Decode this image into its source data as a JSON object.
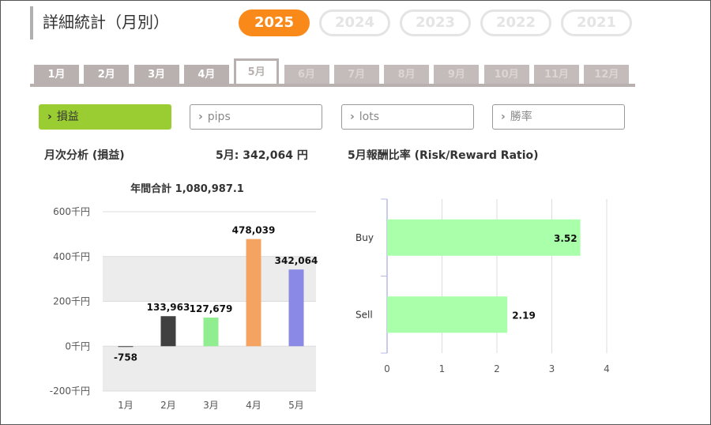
{
  "title": "詳細統計（月別）",
  "years": [
    {
      "label": "2025",
      "active": true
    },
    {
      "label": "2024",
      "active": false
    },
    {
      "label": "2023",
      "active": false
    },
    {
      "label": "2022",
      "active": false
    },
    {
      "label": "2021",
      "active": false
    }
  ],
  "months": [
    "1月",
    "2月",
    "3月",
    "4月",
    "5月",
    "6月",
    "7月",
    "8月",
    "9月",
    "10月",
    "11月",
    "12月"
  ],
  "active_month_index": 4,
  "segments": [
    {
      "label": "損益",
      "active": true
    },
    {
      "label": "pips",
      "active": false
    },
    {
      "label": "lots",
      "active": false
    },
    {
      "label": "勝率",
      "active": false
    }
  ],
  "left_header": "月次分析 (損益)",
  "month_value": "5月:  342,064 円",
  "right_header": "5月報酬比率 (Risk/Reward Ratio)",
  "colors": {
    "accent": "#f98a1a",
    "segment_active": "#9acd32",
    "tab": "#b9b1b0"
  },
  "chart_data": [
    {
      "type": "bar",
      "title": "年間合計 1,080,987.1",
      "categories": [
        "1月",
        "2月",
        "3月",
        "4月",
        "5月"
      ],
      "values": [
        -758,
        133963,
        127679,
        478039,
        342064
      ],
      "value_labels": [
        "-758",
        "133,963",
        "127,679",
        "478,039",
        "342,064"
      ],
      "bar_colors": [
        "#404040",
        "#404040",
        "#90ee90",
        "#f4a460",
        "#8a8ae6"
      ],
      "y_ticks": [
        600000,
        400000,
        200000,
        0,
        -200000
      ],
      "y_tick_labels": [
        "600千円",
        "400千円",
        "200千円",
        "0千円",
        "-200千円"
      ],
      "ylim": [
        -200000,
        600000
      ],
      "grid": true
    },
    {
      "type": "bar",
      "orientation": "horizontal",
      "categories": [
        "Buy",
        "Sell"
      ],
      "values": [
        3.52,
        2.19
      ],
      "value_labels": [
        "3.52",
        "2.19"
      ],
      "bar_color": "#aaffaa",
      "x_ticks": [
        0,
        1,
        2,
        3,
        4
      ],
      "xlim": [
        0,
        4
      ],
      "grid": true
    }
  ]
}
